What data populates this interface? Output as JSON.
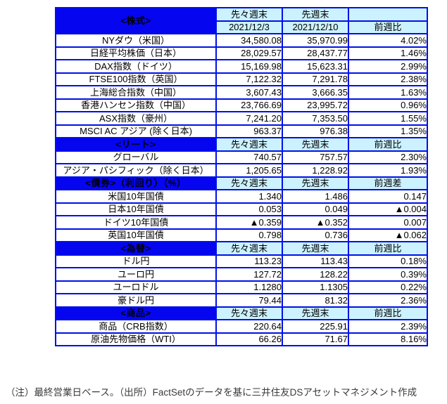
{
  "header": {
    "prev2_week_label": "先々週末",
    "prev1_week_label": "先週末",
    "prev2_date": "2021/12/3",
    "prev1_date": "2021/12/10"
  },
  "sections": [
    {
      "title": "<株式>",
      "header_rows": 2,
      "change_label": "前週比",
      "rows": [
        {
          "label": "NYダウ（米国）",
          "prev2": "34,580.08",
          "prev1": "35,970.99",
          "change": "4.02%"
        },
        {
          "label": "日経平均株価（日本）",
          "prev2": "28,029.57",
          "prev1": "28,437.77",
          "change": "1.46%"
        },
        {
          "label": "DAX指数（ドイツ）",
          "prev2": "15,169.98",
          "prev1": "15,623.31",
          "change": "2.99%"
        },
        {
          "label": "FTSE100指数（英国）",
          "prev2": "7,122.32",
          "prev1": "7,291.78",
          "change": "2.38%"
        },
        {
          "label": "上海総合指数（中国）",
          "prev2": "3,607.43",
          "prev1": "3,666.35",
          "change": "1.63%"
        },
        {
          "label": "香港ハンセン指数（中国）",
          "prev2": "23,766.69",
          "prev1": "23,995.72",
          "change": "0.96%"
        },
        {
          "label": "ASX指数（豪州）",
          "prev2": "7,241.20",
          "prev1": "7,353.50",
          "change": "1.55%"
        },
        {
          "label": "MSCI AC アジア (除く日本)",
          "prev2": "963.37",
          "prev1": "976.38",
          "change": "1.35%"
        }
      ]
    },
    {
      "title": "<リート>",
      "header_rows": 1,
      "change_label": "前週比",
      "rows": [
        {
          "label": "グローバル",
          "prev2": "740.57",
          "prev1": "757.57",
          "change": "2.30%"
        },
        {
          "label": "アジア・パシフィック（除く日本）",
          "prev2": "1,205.65",
          "prev1": "1,228.92",
          "change": "1.93%"
        }
      ]
    },
    {
      "title": "<債券>（利回り）（%）",
      "header_rows": 1,
      "change_label": "前週差",
      "rows": [
        {
          "label": "米国10年国債",
          "prev2": "1.340",
          "prev1": "1.486",
          "change": "0.147"
        },
        {
          "label": "日本10年国債",
          "prev2": "0.053",
          "prev1": "0.049",
          "change": "▲0.004"
        },
        {
          "label": "ドイツ10年国債",
          "prev2": "▲0.359",
          "prev1": "▲0.352",
          "change": "0.007"
        },
        {
          "label": "英国10年国債",
          "prev2": "0.798",
          "prev1": "0.736",
          "change": "▲0.062"
        }
      ]
    },
    {
      "title": "<為替>",
      "header_rows": 1,
      "change_label": "前週比",
      "rows": [
        {
          "label": "ドル円",
          "prev2": "113.23",
          "prev1": "113.43",
          "change": "0.18%"
        },
        {
          "label": "ユーロ円",
          "prev2": "127.72",
          "prev1": "128.22",
          "change": "0.39%"
        },
        {
          "label": "ユーロドル",
          "prev2": "1.1280",
          "prev1": "1.1305",
          "change": "0.22%"
        },
        {
          "label": "豪ドル円",
          "prev2": "79.44",
          "prev1": "81.32",
          "change": "2.36%"
        }
      ]
    },
    {
      "title": "<商品>",
      "header_rows": 1,
      "change_label": "前週比",
      "rows": [
        {
          "label": "商品（CRB指数）",
          "prev2": "220.64",
          "prev1": "225.91",
          "change": "2.39%"
        },
        {
          "label": "原油先物価格（WTI）",
          "prev2": "66.26",
          "prev1": "71.67",
          "change": "8.16%"
        }
      ]
    }
  ],
  "footer": {
    "note": "（注）最終営業日ベース。（出所）FactSetのデータを基に三井住友DSアセットマネジメント作成"
  },
  "colors": {
    "section_header_bg": "#0505f0",
    "column_header_bg": "#ccf2ff",
    "grid_border": "#0010e8",
    "negative_value": "#ff0000",
    "section_title_text": "#ffffff"
  }
}
